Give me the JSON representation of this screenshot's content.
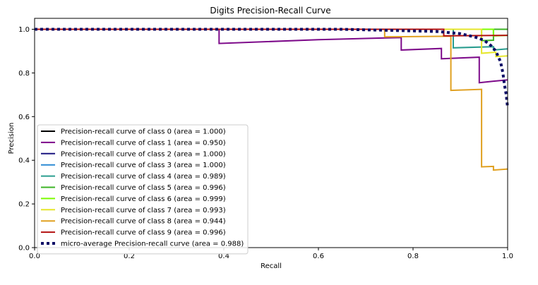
{
  "chart_data": {
    "type": "line",
    "title": "Digits Precision-Recall Curve",
    "xlabel": "Recall",
    "ylabel": "Precision",
    "xlim": [
      0.0,
      1.0
    ],
    "ylim": [
      0.0,
      1.05
    ],
    "xticks": [
      "0.0",
      "0.2",
      "0.4",
      "0.6",
      "0.8",
      "1.0"
    ],
    "xtick_values": [
      0.0,
      0.2,
      0.4,
      0.6,
      0.8,
      1.0
    ],
    "yticks": [
      "0.0",
      "0.2",
      "0.4",
      "0.6",
      "0.8",
      "1.0"
    ],
    "ytick_values": [
      0.0,
      0.2,
      0.4,
      0.6,
      0.8,
      1.0
    ],
    "grid": false,
    "legend_position": "lower-left",
    "series": [
      {
        "name": "Precision-recall curve of class 0 (area = 1.000)",
        "color": "#000000",
        "style": "solid",
        "points": [
          [
            0.0,
            1.0
          ],
          [
            1.0,
            1.0
          ]
        ]
      },
      {
        "name": "Precision-recall curve of class 1 (area = 0.950)",
        "color": "#7d0a8a",
        "style": "solid",
        "points": [
          [
            0.0,
            1.0
          ],
          [
            0.39,
            1.0
          ],
          [
            0.39,
            0.935
          ],
          [
            0.6,
            0.952
          ],
          [
            0.775,
            0.962
          ],
          [
            0.775,
            0.905
          ],
          [
            0.86,
            0.912
          ],
          [
            0.86,
            0.865
          ],
          [
            0.94,
            0.872
          ],
          [
            0.94,
            0.755
          ],
          [
            0.97,
            0.762
          ],
          [
            1.0,
            0.768
          ]
        ]
      },
      {
        "name": "Precision-recall curve of class 2 (area = 1.000)",
        "color": "#1a1580",
        "style": "solid",
        "points": [
          [
            0.0,
            1.0
          ],
          [
            1.0,
            1.0
          ]
        ]
      },
      {
        "name": "Precision-recall curve of class 3 (area = 1.000)",
        "color": "#2d8bd4",
        "style": "solid",
        "points": [
          [
            0.0,
            1.0
          ],
          [
            1.0,
            1.0
          ]
        ]
      },
      {
        "name": "Precision-recall curve of class 4 (area = 0.989)",
        "color": "#2a9d8f",
        "style": "solid",
        "points": [
          [
            0.0,
            1.0
          ],
          [
            0.885,
            1.0
          ],
          [
            0.885,
            0.965
          ],
          [
            0.885,
            0.915
          ],
          [
            0.97,
            0.92
          ],
          [
            0.97,
            0.905
          ],
          [
            1.0,
            0.91
          ]
        ]
      },
      {
        "name": "Precision-recall curve of class 5 (area = 0.996)",
        "color": "#3cb325",
        "style": "solid",
        "points": [
          [
            0.0,
            1.0
          ],
          [
            0.945,
            1.0
          ],
          [
            0.945,
            0.948
          ],
          [
            0.97,
            0.95
          ],
          [
            0.97,
            1.0
          ],
          [
            1.0,
            1.0
          ]
        ]
      },
      {
        "name": "Precision-recall curve of class 6 (area = 0.999)",
        "color": "#7cfc00",
        "style": "solid",
        "points": [
          [
            0.0,
            1.0
          ],
          [
            0.97,
            1.0
          ],
          [
            0.97,
            0.97
          ],
          [
            1.0,
            0.972
          ]
        ]
      },
      {
        "name": "Precision-recall curve of class 7 (area = 0.993)",
        "color": "#e6e62a",
        "style": "solid",
        "points": [
          [
            0.0,
            1.0
          ],
          [
            0.92,
            1.0
          ],
          [
            0.945,
            1.0
          ],
          [
            0.945,
            0.89
          ],
          [
            0.975,
            0.895
          ],
          [
            0.975,
            0.875
          ],
          [
            1.0,
            0.878
          ]
        ]
      },
      {
        "name": "Precision-recall curve of class 8 (area = 0.944)",
        "color": "#e0a020",
        "style": "solid",
        "points": [
          [
            0.0,
            1.0
          ],
          [
            0.74,
            1.0
          ],
          [
            0.74,
            0.965
          ],
          [
            0.88,
            0.968
          ],
          [
            0.88,
            0.72
          ],
          [
            0.945,
            0.725
          ],
          [
            0.945,
            0.37
          ],
          [
            0.97,
            0.372
          ],
          [
            0.97,
            0.355
          ],
          [
            1.0,
            0.36
          ]
        ]
      },
      {
        "name": "Precision-recall curve of class 9 (area = 0.996)",
        "color": "#b31010",
        "style": "solid",
        "points": [
          [
            0.0,
            1.0
          ],
          [
            0.865,
            1.0
          ],
          [
            0.865,
            0.97
          ],
          [
            1.0,
            0.972
          ]
        ]
      },
      {
        "name": "micro-average Precision-recall curve (area = 0.988)",
        "color": "#0b0b66",
        "style": "dotted",
        "points": [
          [
            0.0,
            1.0
          ],
          [
            0.65,
            1.0
          ],
          [
            0.75,
            0.995
          ],
          [
            0.85,
            0.99
          ],
          [
            0.9,
            0.98
          ],
          [
            0.93,
            0.965
          ],
          [
            0.95,
            0.95
          ],
          [
            0.965,
            0.925
          ],
          [
            0.975,
            0.9
          ],
          [
            0.985,
            0.85
          ],
          [
            0.99,
            0.8
          ],
          [
            0.993,
            0.75
          ],
          [
            0.997,
            0.7
          ],
          [
            1.0,
            0.64
          ]
        ]
      }
    ]
  }
}
